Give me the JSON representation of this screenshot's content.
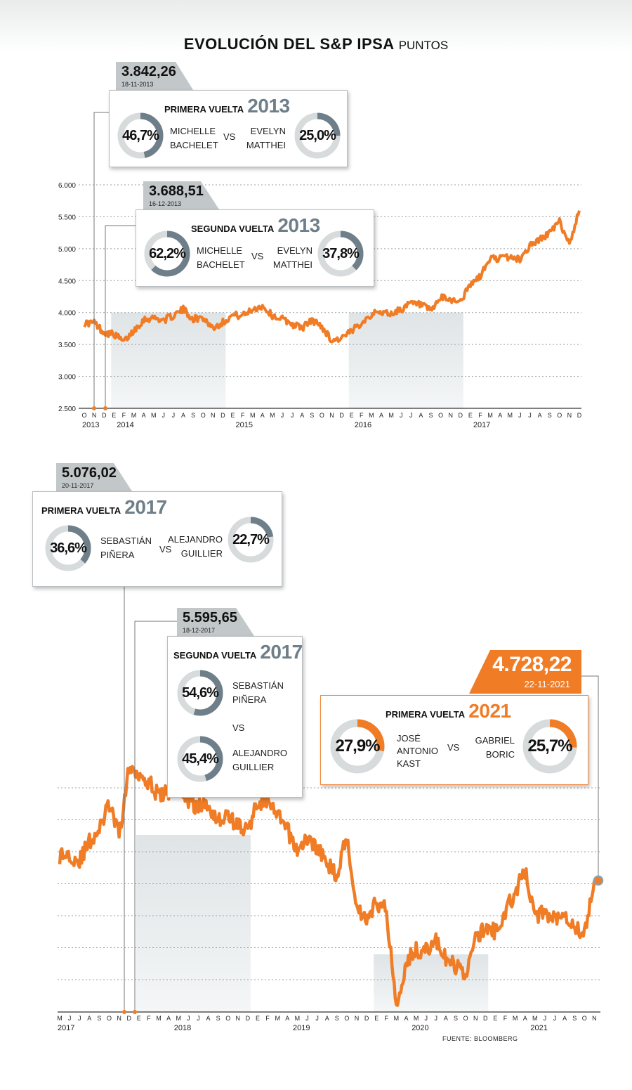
{
  "title": "EVOLUCIÓN DEL S&P IPSA",
  "unit": "PUNTOS",
  "source": "FUENTE: BLOOMBERG",
  "colors": {
    "line": "#f07c26",
    "accent_grey": "#6f7f89",
    "ring_bg": "#d7dbdc",
    "tag_grey": "#c2c7c9"
  },
  "chart_data": [
    {
      "type": "line",
      "title": "EVOLUCIÓN DEL S&P IPSA",
      "ylabel": "PUNTOS",
      "ylim": [
        2500,
        6000
      ],
      "yticks": [
        "6.000",
        "5.500",
        "5.000",
        "4.500",
        "4.000",
        "3.500",
        "3.000",
        "2.500"
      ],
      "grid": true,
      "month_labels": [
        "O",
        "N",
        "D",
        "E",
        "F",
        "M",
        "A",
        "M",
        "J",
        "J",
        "A",
        "S",
        "O",
        "N",
        "D",
        "E",
        "F",
        "M",
        "A",
        "M",
        "J",
        "J",
        "A",
        "S",
        "O",
        "N",
        "D",
        "E",
        "F",
        "M",
        "A",
        "M",
        "J",
        "J",
        "A",
        "S",
        "O",
        "N",
        "D",
        "E",
        "F",
        "M",
        "A",
        "M",
        "J",
        "J",
        "A",
        "S",
        "O",
        "N",
        "D"
      ],
      "year_labels": [
        "2013",
        "2014",
        "2015",
        "2016",
        "2017"
      ],
      "shaded_periods": [
        "E 2014 – D 2014",
        "E 2016 – D 2016"
      ],
      "series": [
        {
          "x": [
            "2013-10",
            "2013-11",
            "2013-12",
            "2014-01",
            "2014-02",
            "2014-03",
            "2014-04",
            "2014-05",
            "2014-06",
            "2014-07",
            "2014-08",
            "2014-09",
            "2014-10",
            "2014-11",
            "2014-12",
            "2015-01",
            "2015-02",
            "2015-03",
            "2015-04",
            "2015-05",
            "2015-06",
            "2015-07",
            "2015-08",
            "2015-09",
            "2015-10",
            "2015-11",
            "2015-12",
            "2016-01",
            "2016-02",
            "2016-03",
            "2016-04",
            "2016-05",
            "2016-06",
            "2016-07",
            "2016-08",
            "2016-09",
            "2016-10",
            "2016-11",
            "2016-12",
            "2017-01",
            "2017-02",
            "2017-03",
            "2017-04",
            "2017-05",
            "2017-06",
            "2017-07",
            "2017-08",
            "2017-09",
            "2017-10",
            "2017-11",
            "2017-12"
          ],
          "values": [
            3830,
            3842,
            3689,
            3660,
            3540,
            3720,
            3890,
            3920,
            3880,
            3950,
            4050,
            3900,
            3920,
            3760,
            3850,
            3960,
            3950,
            4050,
            4100,
            3950,
            3900,
            3820,
            3760,
            3880,
            3780,
            3560,
            3600,
            3700,
            3850,
            3970,
            4010,
            3980,
            4050,
            4140,
            4120,
            4020,
            4230,
            4200,
            4180,
            4430,
            4570,
            4850,
            4850,
            4870,
            4830,
            5050,
            5140,
            5250,
            5420,
            5076,
            5596
          ]
        }
      ],
      "annotations": [
        {
          "value": "3.842,26",
          "date": "18-11-2013",
          "round": "PRIMERA VUELTA",
          "year": "2013",
          "a": {
            "name": [
              "MICHELLE",
              "BACHELET"
            ],
            "pct": "46,7%",
            "pct_value": 46.7
          },
          "b": {
            "name": [
              "EVELYN",
              "MATTHEI"
            ],
            "pct": "25,0%",
            "pct_value": 25.0
          }
        },
        {
          "value": "3.688,51",
          "date": "16-12-2013",
          "round": "SEGUNDA VUELTA",
          "year": "2013",
          "a": {
            "name": [
              "MICHELLE",
              "BACHELET"
            ],
            "pct": "62,2%",
            "pct_value": 62.2
          },
          "b": {
            "name": [
              "EVELYN",
              "MATTHEI"
            ],
            "pct": "37,8%",
            "pct_value": 37.8
          }
        }
      ],
      "vs": "VS"
    },
    {
      "type": "line",
      "grid": true,
      "month_labels": [
        "M",
        "J",
        "J",
        "A",
        "S",
        "O",
        "N",
        "D",
        "E",
        "F",
        "M",
        "A",
        "M",
        "J",
        "J",
        "A",
        "S",
        "O",
        "N",
        "D",
        "E",
        "F",
        "M",
        "A",
        "M",
        "J",
        "J",
        "A",
        "S",
        "O",
        "N",
        "D",
        "E",
        "F",
        "M",
        "A",
        "M",
        "J",
        "J",
        "A",
        "S",
        "O",
        "N",
        "D",
        "E",
        "F",
        "M",
        "A",
        "M",
        "J",
        "J",
        "A",
        "S",
        "O",
        "N"
      ],
      "year_labels": [
        "2017",
        "2018",
        "2019",
        "2020",
        "2021"
      ],
      "shaded_periods": [
        "E 2018 – D 2018",
        "E 2020 – D 2020"
      ],
      "series": [
        {
          "x": [
            "2017-05",
            "2017-06",
            "2017-07",
            "2017-08",
            "2017-09",
            "2017-10",
            "2017-11",
            "2017-12",
            "2018-01",
            "2018-02",
            "2018-03",
            "2018-04",
            "2018-05",
            "2018-06",
            "2018-07",
            "2018-08",
            "2018-09",
            "2018-10",
            "2018-11",
            "2018-12",
            "2019-01",
            "2019-02",
            "2019-03",
            "2019-04",
            "2019-05",
            "2019-06",
            "2019-07",
            "2019-08",
            "2019-09",
            "2019-10",
            "2019-11",
            "2019-12",
            "2020-01",
            "2020-02",
            "2020-03",
            "2020-04",
            "2020-05",
            "2020-06",
            "2020-07",
            "2020-08",
            "2020-09",
            "2020-10",
            "2020-11",
            "2020-12",
            "2021-01",
            "2021-02",
            "2021-03",
            "2021-04",
            "2021-05",
            "2021-06",
            "2021-07",
            "2021-08",
            "2021-09",
            "2021-10",
            "2021-11"
          ],
          "values": [
            4920,
            4930,
            4880,
            5030,
            5120,
            5320,
            5076,
            5596,
            5570,
            5500,
            5380,
            5420,
            5500,
            5340,
            5300,
            5320,
            5200,
            5230,
            5160,
            5110,
            5350,
            5330,
            5230,
            5120,
            4960,
            5050,
            4990,
            4850,
            4780,
            5070,
            4520,
            4430,
            4560,
            4500,
            3750,
            4100,
            4190,
            4180,
            4260,
            4110,
            4060,
            4000,
            4270,
            4360,
            4330,
            4480,
            4640,
            4800,
            4450,
            4480,
            4440,
            4480,
            4380,
            4300,
            4728
          ]
        }
      ],
      "annotations": [
        {
          "value": "5.076,02",
          "date": "20-11-2017",
          "round": "PRIMERA VUELTA",
          "year": "2017",
          "a": {
            "name": [
              "SEBASTIÁN",
              "PIÑERA"
            ],
            "pct": "36,6%",
            "pct_value": 36.6
          },
          "b": {
            "name": [
              "ALEJANDRO",
              "GUILLIER"
            ],
            "pct": "22,7%",
            "pct_value": 22.7
          }
        },
        {
          "value": "5.595,65",
          "date": "18-12-2017",
          "round": "SEGUNDA VUELTA",
          "year": "2017",
          "a": {
            "name": [
              "SEBASTIÁN",
              "PIÑERA"
            ],
            "pct": "54,6%",
            "pct_value": 54.6
          },
          "b": {
            "name": [
              "ALEJANDRO",
              "GUILLIER"
            ],
            "pct": "45,4%",
            "pct_value": 45.4
          }
        },
        {
          "value": "4.728,22",
          "date": "22-11-2021",
          "round": "PRIMERA VUELTA",
          "year": "2021",
          "a": {
            "name": [
              "JOSÉ",
              "ANTONIO",
              "KAST"
            ],
            "pct": "27,9%",
            "pct_value": 27.9
          },
          "b": {
            "name": [
              "GABRIEL",
              "BORIC"
            ],
            "pct": "25,7%",
            "pct_value": 25.7
          }
        }
      ],
      "vs": "VS"
    }
  ]
}
